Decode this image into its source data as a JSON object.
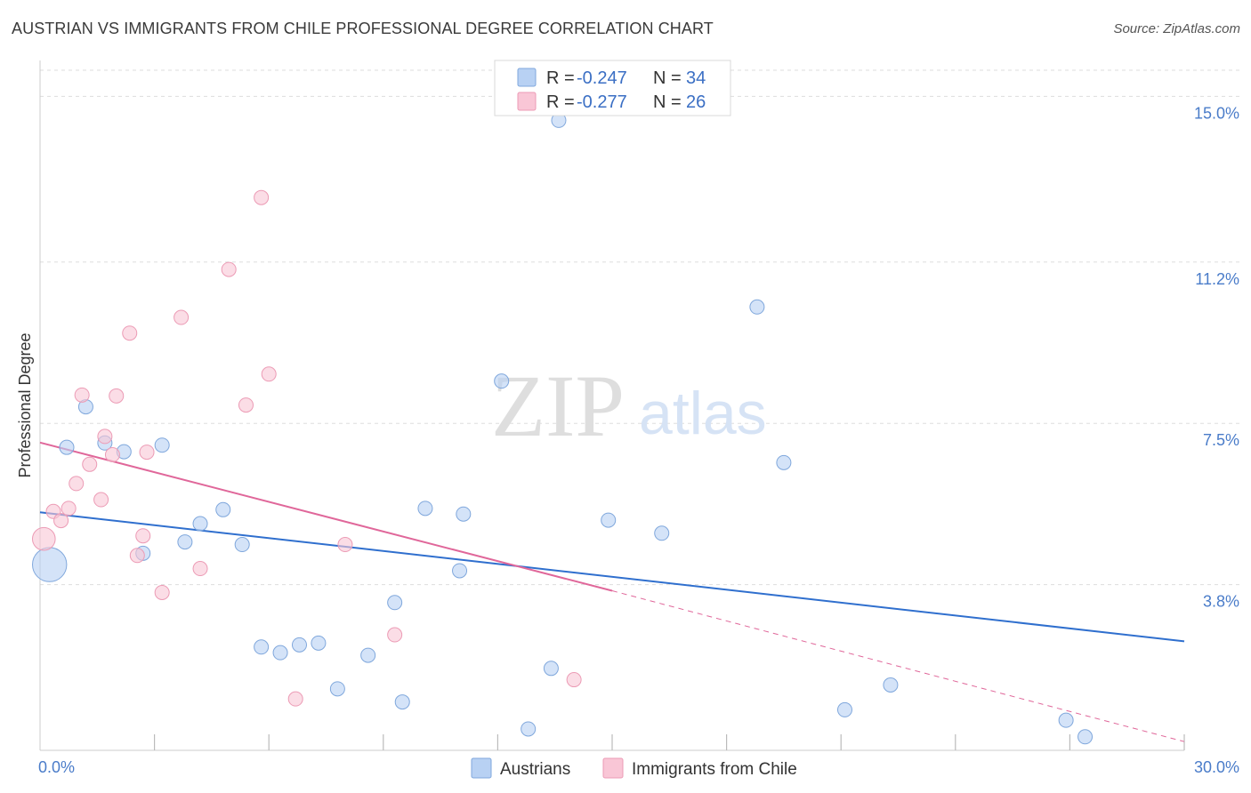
{
  "header": {
    "title": "AUSTRIAN VS IMMIGRANTS FROM CHILE PROFESSIONAL DEGREE CORRELATION CHART",
    "source": "Source: ZipAtlas.com"
  },
  "watermark": {
    "zip": "ZIP",
    "atlas": "atlas"
  },
  "colors": {
    "austrians_fill": "#b8d1f3",
    "austrians_stroke": "#7fa7dc",
    "austrians_line": "#2f6fce",
    "chile_fill": "#f9c6d6",
    "chile_stroke": "#ec9bb5",
    "chile_line": "#e0679a",
    "tick_label": "#4a7cc9",
    "grid": "#dddddd"
  },
  "legend": {
    "rows": [
      {
        "r_label": "R = ",
        "r_value": "-0.247",
        "n_label": "N = ",
        "n_value": "34"
      },
      {
        "r_label": "R = ",
        "r_value": "-0.277",
        "n_label": "N = ",
        "n_value": "26"
      }
    ]
  },
  "chart_data": {
    "type": "scatter",
    "title": "AUSTRIAN VS IMMIGRANTS FROM CHILE PROFESSIONAL DEGREE CORRELATION CHART",
    "xlabel": "",
    "ylabel": "Professional Degree",
    "xlim": [
      0,
      30
    ],
    "ylim": [
      0,
      15.6
    ],
    "y_ticks": [
      {
        "value": 15.0,
        "label": "15.0%"
      },
      {
        "value": 11.2,
        "label": "11.2%"
      },
      {
        "value": 7.5,
        "label": "7.5%"
      },
      {
        "value": 3.8,
        "label": "3.8%"
      }
    ],
    "x_tick_labels": [
      {
        "value": 0,
        "label": "0.0%"
      },
      {
        "value": 30,
        "label": "30.0%"
      }
    ],
    "x_minor_ticks": [
      3,
      6,
      9,
      12,
      15,
      18,
      21,
      24,
      27,
      30
    ],
    "grid": true,
    "legend_placement": "top-center",
    "series": [
      {
        "name": "Austrians",
        "points": [
          [
            0.25,
            4.26,
            2.4
          ],
          [
            0.7,
            6.95,
            1
          ],
          [
            1.2,
            7.88,
            1
          ],
          [
            1.7,
            7.05,
            1
          ],
          [
            2.2,
            6.85,
            1
          ],
          [
            2.7,
            4.52,
            1
          ],
          [
            3.2,
            7.0,
            1
          ],
          [
            3.8,
            4.78,
            1
          ],
          [
            4.2,
            5.2,
            1
          ],
          [
            4.8,
            5.52,
            1
          ],
          [
            5.3,
            4.72,
            1
          ],
          [
            5.8,
            2.37,
            1
          ],
          [
            6.3,
            2.24,
            1
          ],
          [
            6.8,
            2.42,
            1
          ],
          [
            7.3,
            2.46,
            1
          ],
          [
            7.8,
            1.41,
            1
          ],
          [
            8.6,
            2.18,
            1
          ],
          [
            9.3,
            3.39,
            1
          ],
          [
            9.5,
            1.11,
            1
          ],
          [
            10.1,
            5.55,
            1
          ],
          [
            11.1,
            5.42,
            1
          ],
          [
            11.0,
            4.12,
            1
          ],
          [
            12.1,
            8.47,
            1
          ],
          [
            12.8,
            0.49,
            1
          ],
          [
            13.4,
            1.88,
            1
          ],
          [
            13.6,
            14.45,
            1
          ],
          [
            14.9,
            5.28,
            1
          ],
          [
            16.3,
            4.98,
            1
          ],
          [
            18.8,
            10.17,
            1
          ],
          [
            19.5,
            6.6,
            1
          ],
          [
            21.1,
            0.93,
            1
          ],
          [
            22.3,
            1.5,
            1
          ],
          [
            26.9,
            0.69,
            1
          ],
          [
            27.4,
            0.31,
            1
          ]
        ],
        "trend": {
          "x0": 0,
          "y0": 5.46,
          "x1": 30,
          "y1": 2.5
        }
      },
      {
        "name": "Immigrants from Chile",
        "points": [
          [
            0.1,
            4.85,
            1.6
          ],
          [
            0.35,
            5.48,
            1
          ],
          [
            0.55,
            5.27,
            1
          ],
          [
            0.75,
            5.55,
            1
          ],
          [
            0.95,
            6.12,
            1
          ],
          [
            1.1,
            8.15,
            1
          ],
          [
            1.3,
            6.56,
            1
          ],
          [
            1.6,
            5.75,
            1
          ],
          [
            1.7,
            7.2,
            1
          ],
          [
            1.9,
            6.78,
            1
          ],
          [
            2.0,
            8.13,
            1
          ],
          [
            2.35,
            9.57,
            1
          ],
          [
            2.55,
            4.47,
            1
          ],
          [
            2.7,
            4.92,
            1
          ],
          [
            2.8,
            6.84,
            1
          ],
          [
            3.2,
            3.62,
            1
          ],
          [
            3.7,
            9.93,
            1
          ],
          [
            4.2,
            4.17,
            1
          ],
          [
            4.95,
            11.03,
            1
          ],
          [
            5.4,
            7.92,
            1
          ],
          [
            5.8,
            12.68,
            1
          ],
          [
            6.0,
            8.63,
            1
          ],
          [
            6.7,
            1.18,
            1
          ],
          [
            8.0,
            4.72,
            1
          ],
          [
            9.3,
            2.65,
            1
          ],
          [
            14.0,
            1.62,
            1
          ]
        ],
        "trend": {
          "x0": 0,
          "y0": 7.06,
          "x1": 15.0,
          "y1": 3.66
        },
        "trend_extension": {
          "x0": 15.0,
          "y0": 3.66,
          "x1": 30,
          "y1": 0.2
        }
      }
    ]
  }
}
